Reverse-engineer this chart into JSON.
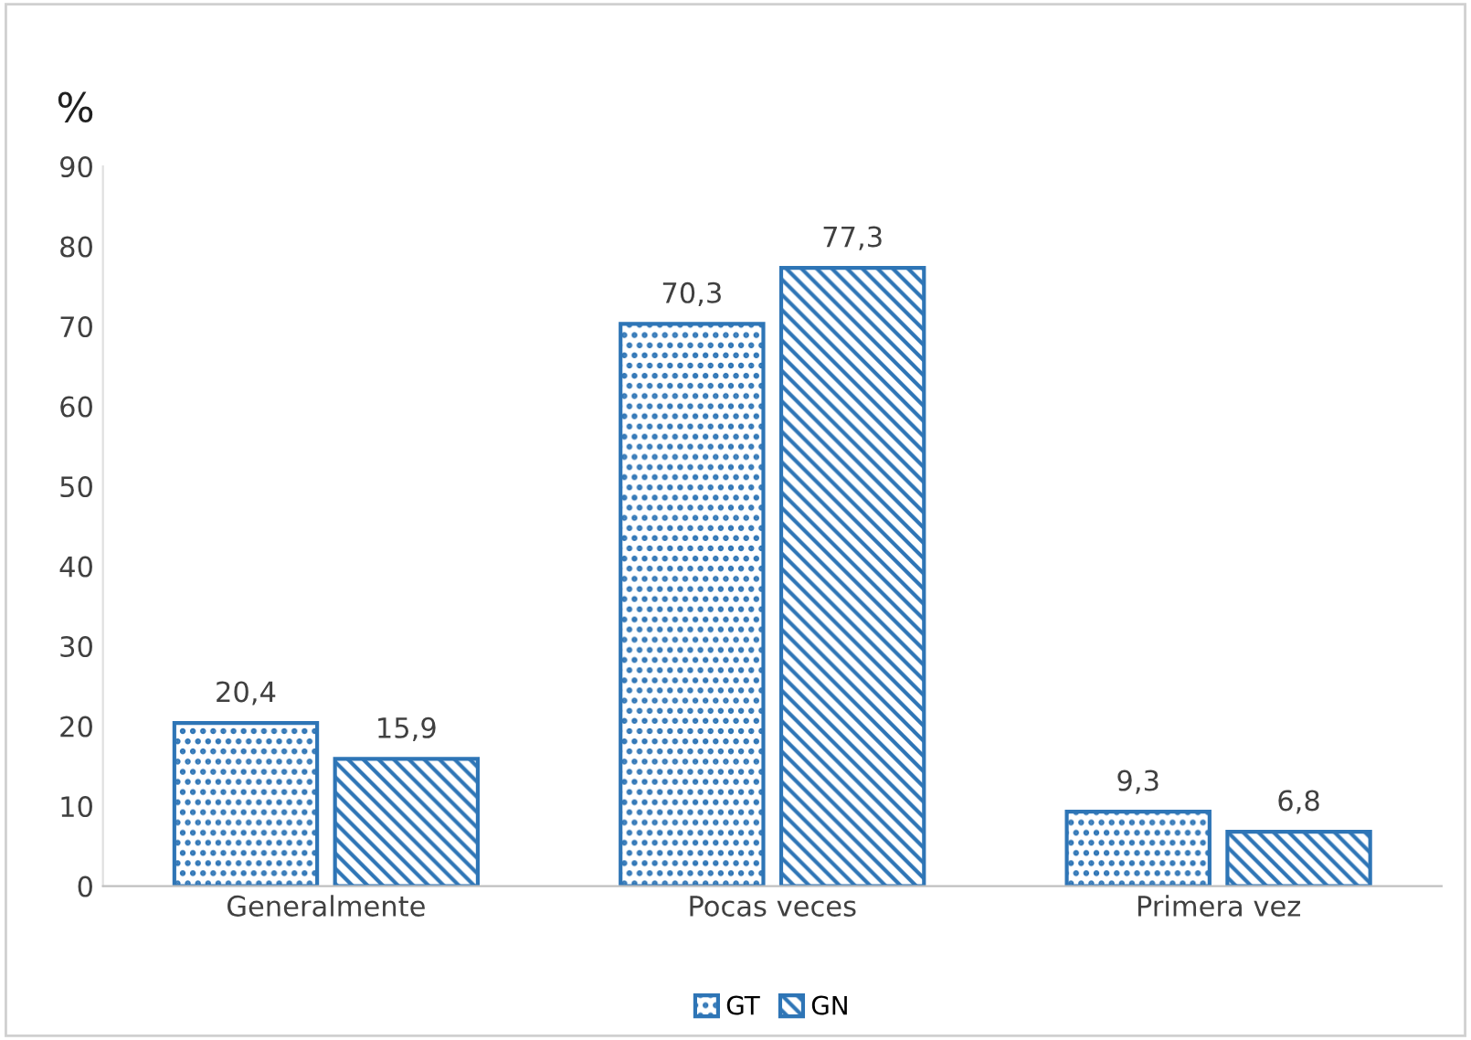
{
  "chart_data": {
    "type": "bar",
    "ylabel": "%",
    "categories": [
      "Generalmente",
      "Pocas veces",
      "Primera vez"
    ],
    "series": [
      {
        "name": "GT",
        "color": "#2e75b6",
        "values": [
          20.4,
          70.3,
          9.3
        ],
        "value_labels": [
          "20,4",
          "70,3",
          "9,3"
        ]
      },
      {
        "name": "GN",
        "color": "#2e75b6",
        "values": [
          15.9,
          77.3,
          6.8
        ],
        "value_labels": [
          "15,9",
          "77,3",
          "6,8"
        ]
      }
    ],
    "ylim": [
      0,
      90
    ],
    "yticks": [
      0,
      10,
      20,
      30,
      40,
      50,
      60,
      70,
      80,
      90
    ],
    "legend": "bottom",
    "grid": false
  }
}
